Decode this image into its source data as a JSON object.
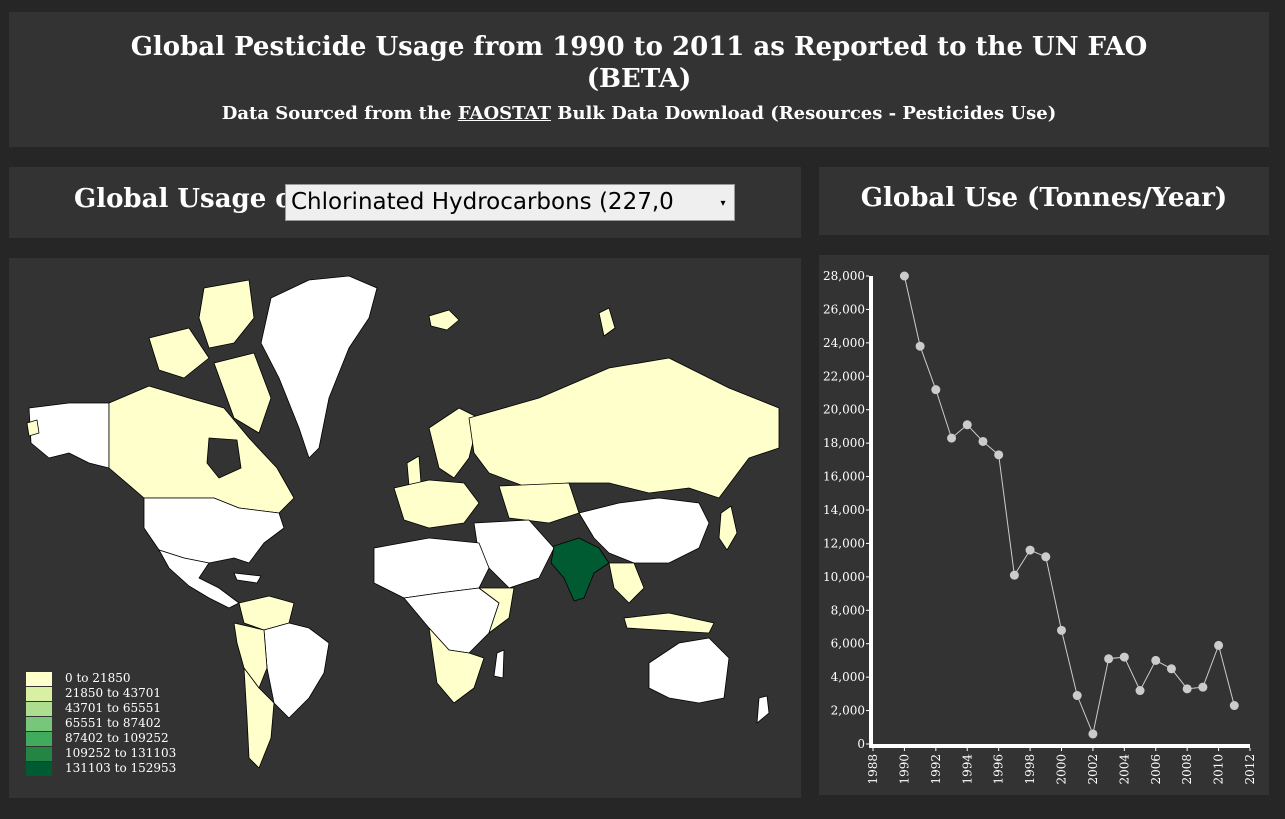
{
  "header": {
    "title_line1": "Global Pesticide Usage from 1990 to 2011 as Reported to the UN FAO",
    "title_line2": "(BETA)",
    "subtitle_prefix": "Data Sourced from the",
    "subtitle_link": "FAOSTAT",
    "subtitle_suffix": "Bulk Data Download (Resources - Pesticides Use)"
  },
  "selector": {
    "label": "Global Usage of",
    "selected": "Chlorinated Hydrocarbons (227,0",
    "arrow": "▾"
  },
  "chart_panel": {
    "title": "Global Use (Tonnes/Year)"
  },
  "map": {
    "legend": [
      {
        "label": "0 to 21850",
        "color": "#ffffcc"
      },
      {
        "label": "21850 to 43701",
        "color": "#d9f0a3"
      },
      {
        "label": "43701 to 65551",
        "color": "#addd8e"
      },
      {
        "label": "65551 to 87402",
        "color": "#78c679"
      },
      {
        "label": "87402 to 109252",
        "color": "#41ab5d"
      },
      {
        "label": "109252 to 131103",
        "color": "#238443"
      },
      {
        "label": "131103 to 152953",
        "color": "#005a32"
      }
    ],
    "colors": {
      "no_data": "#ffffff",
      "low": "#ffffcc",
      "highlight": "#005a32",
      "border": "#000000"
    }
  },
  "chart_data": {
    "type": "line",
    "title": "",
    "xlabel": "",
    "ylabel": "",
    "xlim": [
      1988,
      2012
    ],
    "ylim": [
      0,
      28000
    ],
    "x_ticks": [
      "1988",
      "1990",
      "1992",
      "1994",
      "1996",
      "1998",
      "2000",
      "2002",
      "2004",
      "2006",
      "2008",
      "2010",
      "2012"
    ],
    "y_ticks": [
      "0",
      "2,000",
      "4,000",
      "6,000",
      "8,000",
      "10,000",
      "12,000",
      "14,000",
      "16,000",
      "18,000",
      "20,000",
      "22,000",
      "24,000",
      "26,000",
      "28,000"
    ],
    "series": [
      {
        "x": [
          1990,
          1991,
          1992,
          1993,
          1994,
          1995,
          1996,
          1997,
          1998,
          1999,
          2000,
          2001,
          2002,
          2003,
          2004,
          2005,
          2006,
          2007,
          2008,
          2009,
          2010,
          2011
        ],
        "values": [
          28000,
          23800,
          21200,
          18300,
          19100,
          18100,
          17300,
          10100,
          11600,
          11200,
          6800,
          2900,
          600,
          5100,
          5200,
          3200,
          5000,
          4500,
          3300,
          3400,
          5900,
          2300
        ]
      }
    ],
    "colors": {
      "line": "#cccccc",
      "point": "#cccccc",
      "axis": "#ffffff"
    }
  }
}
